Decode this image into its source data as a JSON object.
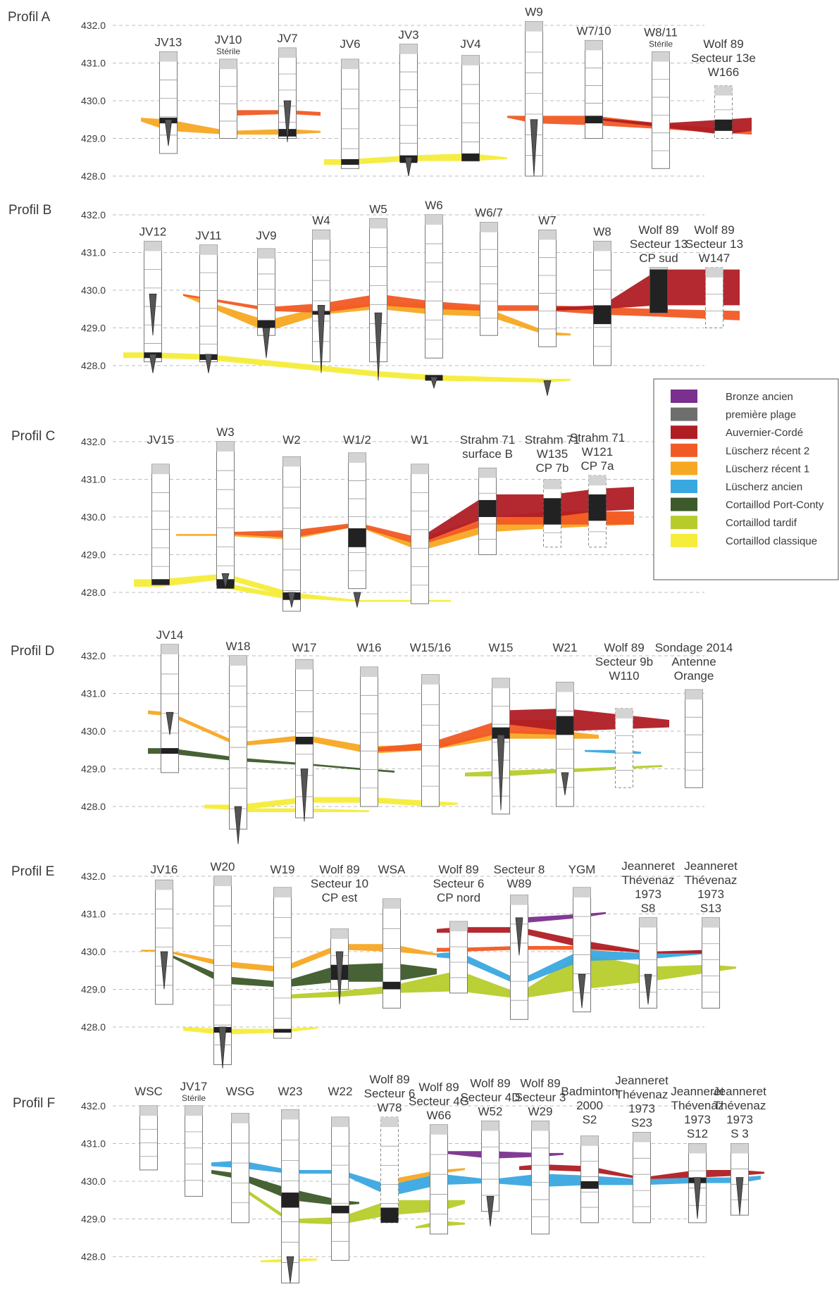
{
  "elevation_ticks": [
    "432.0",
    "431.0",
    "430.0",
    "429.0",
    "428.0"
  ],
  "legend": [
    {
      "label": "Bronze ancien",
      "color": "#7b2f8e"
    },
    {
      "label": "première plage",
      "color": "#6e6e6e"
    },
    {
      "label": "Auvernier-Cordé",
      "color": "#b01e24"
    },
    {
      "label": "Lüscherz récent 2",
      "color": "#f15a24"
    },
    {
      "label": "Lüscherz récent 1",
      "color": "#f7a823"
    },
    {
      "label": "Lüscherz ancien",
      "color": "#3aa8e0"
    },
    {
      "label": "Cortaillod Port-Conty",
      "color": "#3d5a2a"
    },
    {
      "label": "Cortaillod tardif",
      "color": "#b7cc2b"
    },
    {
      "label": "Cortaillod classique",
      "color": "#f6ec3a"
    }
  ],
  "profiles": [
    {
      "name": "Profil A",
      "cores": [
        {
          "lines": [
            "JV13"
          ],
          "sub": ""
        },
        {
          "lines": [
            "JV10"
          ],
          "sub": "Stérile"
        },
        {
          "lines": [
            "JV7"
          ],
          "sub": ""
        },
        {
          "lines": [
            "JV6"
          ],
          "sub": ""
        },
        {
          "lines": [
            "JV3"
          ],
          "sub": ""
        },
        {
          "lines": [
            "JV4"
          ],
          "sub": ""
        },
        {
          "lines": [
            "W9"
          ],
          "sub": ""
        },
        {
          "lines": [
            "W7/10"
          ],
          "sub": ""
        },
        {
          "lines": [
            "W8/11"
          ],
          "sub": "Stérile"
        },
        {
          "lines": [
            "Wolf 89",
            "Secteur 13e",
            "W166"
          ],
          "sub": ""
        }
      ]
    },
    {
      "name": "Profil B",
      "cores": [
        {
          "lines": [
            "JV12"
          ],
          "sub": ""
        },
        {
          "lines": [
            "JV11"
          ],
          "sub": ""
        },
        {
          "lines": [
            "JV9"
          ],
          "sub": ""
        },
        {
          "lines": [
            "W4"
          ],
          "sub": ""
        },
        {
          "lines": [
            "W5"
          ],
          "sub": ""
        },
        {
          "lines": [
            "W6"
          ],
          "sub": ""
        },
        {
          "lines": [
            "W6/7"
          ],
          "sub": ""
        },
        {
          "lines": [
            "W7"
          ],
          "sub": ""
        },
        {
          "lines": [
            "W8"
          ],
          "sub": ""
        },
        {
          "lines": [
            "Wolf 89",
            "Secteur 13",
            "CP sud"
          ],
          "sub": ""
        },
        {
          "lines": [
            "Wolf 89",
            "Secteur 13",
            "W147"
          ],
          "sub": ""
        }
      ]
    },
    {
      "name": "Profil C",
      "cores": [
        {
          "lines": [
            "JV15"
          ],
          "sub": ""
        },
        {
          "lines": [
            "W3"
          ],
          "sub": ""
        },
        {
          "lines": [
            "W2"
          ],
          "sub": ""
        },
        {
          "lines": [
            "W1/2"
          ],
          "sub": ""
        },
        {
          "lines": [
            "W1"
          ],
          "sub": ""
        },
        {
          "lines": [
            "Strahm 71",
            "surface B"
          ],
          "sub": ""
        },
        {
          "lines": [
            "Strahm 71",
            "W135",
            "CP 7b"
          ],
          "sub": ""
        },
        {
          "lines": [
            "Strahm 71",
            "W121",
            "CP 7a"
          ],
          "sub": ""
        }
      ]
    },
    {
      "name": "Profil D",
      "cores": [
        {
          "lines": [
            "JV14"
          ],
          "sub": ""
        },
        {
          "lines": [
            "W18"
          ],
          "sub": ""
        },
        {
          "lines": [
            "W17"
          ],
          "sub": ""
        },
        {
          "lines": [
            "W16"
          ],
          "sub": ""
        },
        {
          "lines": [
            "W15/16"
          ],
          "sub": ""
        },
        {
          "lines": [
            "W15"
          ],
          "sub": ""
        },
        {
          "lines": [
            "W21"
          ],
          "sub": ""
        },
        {
          "lines": [
            "Wolf 89",
            "Secteur 9b",
            "W110"
          ],
          "sub": ""
        },
        {
          "lines": [
            "Sondage 2014",
            "Antenne",
            "Orange"
          ],
          "sub": ""
        }
      ]
    },
    {
      "name": "Profil E",
      "cores": [
        {
          "lines": [
            "JV16"
          ],
          "sub": ""
        },
        {
          "lines": [
            "W20"
          ],
          "sub": ""
        },
        {
          "lines": [
            "W19"
          ],
          "sub": ""
        },
        {
          "lines": [
            "Wolf 89",
            "Secteur 10",
            "CP est"
          ],
          "sub": ""
        },
        {
          "lines": [
            "WSA"
          ],
          "sub": ""
        },
        {
          "lines": [
            "Wolf 89",
            "Secteur 6",
            "CP nord"
          ],
          "sub": ""
        },
        {
          "lines": [
            "Secteur 8",
            "W89"
          ],
          "sub": ""
        },
        {
          "lines": [
            "YGM"
          ],
          "sub": ""
        },
        {
          "lines": [
            "Jeanneret",
            "Thévenaz",
            "1973",
            "S8"
          ],
          "sub": ""
        },
        {
          "lines": [
            "Jeanneret",
            "Thévenaz",
            "1973",
            "S13"
          ],
          "sub": ""
        }
      ]
    },
    {
      "name": "Profil F",
      "cores": [
        {
          "lines": [
            "WSC"
          ],
          "sub": ""
        },
        {
          "lines": [
            "JV17"
          ],
          "sub": "Stérile"
        },
        {
          "lines": [
            "WSG"
          ],
          "sub": ""
        },
        {
          "lines": [
            "W23"
          ],
          "sub": ""
        },
        {
          "lines": [
            "W22"
          ],
          "sub": ""
        },
        {
          "lines": [
            "Wolf 89",
            "Secteur 6",
            "W78"
          ],
          "sub": ""
        },
        {
          "lines": [
            "Wolf 89",
            "Secteur 4G",
            "W66"
          ],
          "sub": ""
        },
        {
          "lines": [
            "Wolf 89",
            "Secteur 4D",
            "W52"
          ],
          "sub": ""
        },
        {
          "lines": [
            "Wolf 89",
            "Secteur 3",
            "W29"
          ],
          "sub": ""
        },
        {
          "lines": [
            "Badminton",
            "2000",
            "S2"
          ],
          "sub": ""
        },
        {
          "lines": [
            "Jeanneret",
            "Thévenaz",
            "1973",
            "S23"
          ],
          "sub": ""
        },
        {
          "lines": [
            "Jeanneret",
            "Thévenaz",
            "1973",
            "S12"
          ],
          "sub": ""
        },
        {
          "lines": [
            "Jeanneret",
            "Thévenaz",
            "1973",
            "S 3"
          ],
          "sub": ""
        }
      ]
    }
  ]
}
